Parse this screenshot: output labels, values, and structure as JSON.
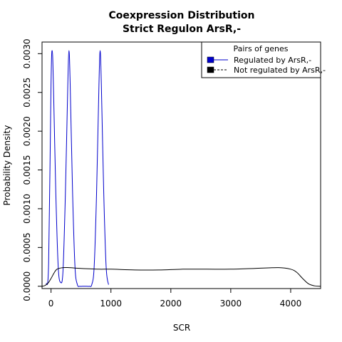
{
  "chart_data": {
    "type": "line",
    "title": "Coexpression Distribution",
    "subtitle": "Strict Regulon ArsR,-",
    "xlabel": "SCR",
    "ylabel": "Probability Density",
    "xlim": [
      -150,
      4500
    ],
    "ylim": [
      -3e-05,
      0.00315
    ],
    "x_ticks": [
      0,
      1000,
      2000,
      3000,
      4000
    ],
    "x_tick_labels": [
      "0",
      "1000",
      "2000",
      "3000",
      "4000"
    ],
    "y_ticks": [
      0,
      0.0005,
      0.001,
      0.0015,
      0.002,
      0.0025,
      0.003
    ],
    "y_tick_labels": [
      "0.0000",
      "0.0005",
      "0.0010",
      "0.0015",
      "0.0020",
      "0.0025",
      "0.0030"
    ],
    "grid": false,
    "legend": {
      "title": "Pairs of genes",
      "placement": "top-right",
      "entries": [
        "Regulated by  ArsR,-",
        "Not regulated by  ArsR,-"
      ]
    },
    "series": [
      {
        "name": "Regulated by  ArsR,-",
        "color": "#0000cc",
        "line_style": "solid",
        "x": [
          -80,
          -40,
          0,
          20,
          40,
          80,
          120,
          160,
          200,
          240,
          280,
          300,
          320,
          360,
          400,
          440,
          480,
          520,
          560,
          600,
          640,
          680,
          720,
          760,
          800,
          820,
          840,
          880,
          920,
          960
        ],
        "y": [
          3e-05,
          0.0003,
          0.0026,
          0.00304,
          0.0026,
          0.0012,
          0.00025,
          5e-05,
          0.0002,
          0.0012,
          0.0026,
          0.00304,
          0.0026,
          0.0012,
          0.00025,
          2e-05,
          0.0,
          0.0,
          0.0,
          0.0,
          0.0,
          2e-05,
          0.00025,
          0.0012,
          0.0026,
          0.00304,
          0.0026,
          0.0012,
          0.00025,
          2e-05
        ]
      },
      {
        "name": "Not regulated by  ArsR,-",
        "color": "#000000",
        "line_style": "solid",
        "x": [
          -150,
          -100,
          -50,
          0,
          50,
          100,
          200,
          300,
          500,
          800,
          1000,
          1400,
          1800,
          2200,
          2600,
          3000,
          3400,
          3800,
          4000,
          4100,
          4200,
          4300,
          4400,
          4500
        ],
        "y": [
          0.0,
          1e-05,
          4e-05,
          0.0001,
          0.00017,
          0.00022,
          0.00024,
          0.00024,
          0.00023,
          0.00022,
          0.00022,
          0.00021,
          0.00021,
          0.00022,
          0.00022,
          0.00022,
          0.00023,
          0.00024,
          0.00022,
          0.00018,
          0.0001,
          3e-05,
          5e-06,
          0.0
        ]
      }
    ]
  }
}
